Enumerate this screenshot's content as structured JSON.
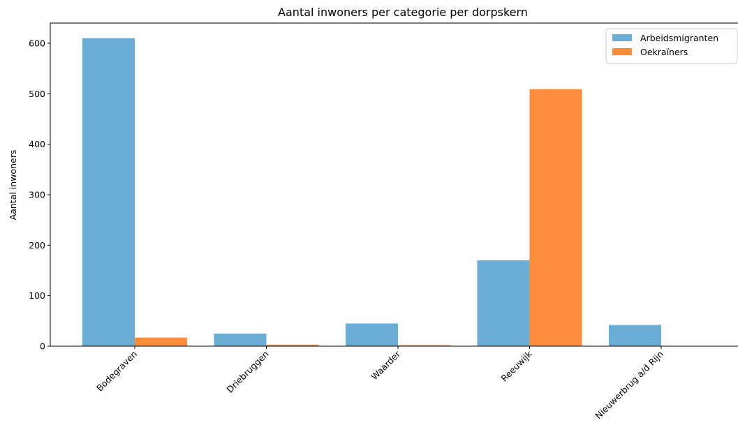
{
  "chart_data": {
    "type": "bar",
    "title": "Aantal inwoners per categorie per dorpskern",
    "xlabel": "",
    "ylabel": "Aantal inwoners",
    "categories": [
      "Bodegraven",
      "Driebruggen",
      "Waarder",
      "Reeuwijk",
      "Nieuwerbrug a/d Rijn"
    ],
    "series": [
      {
        "name": "Arbeidsmigranten",
        "color": "#6baed6",
        "values": [
          610,
          25,
          45,
          170,
          42
        ]
      },
      {
        "name": "Oekraïners",
        "color": "#fd8d3c",
        "values": [
          17,
          3,
          2,
          509,
          0
        ]
      }
    ],
    "ylim": [
      0,
      640
    ],
    "yticks": [
      0,
      100,
      200,
      300,
      400,
      500,
      600
    ],
    "grid": false,
    "legend_position": "top-right"
  }
}
